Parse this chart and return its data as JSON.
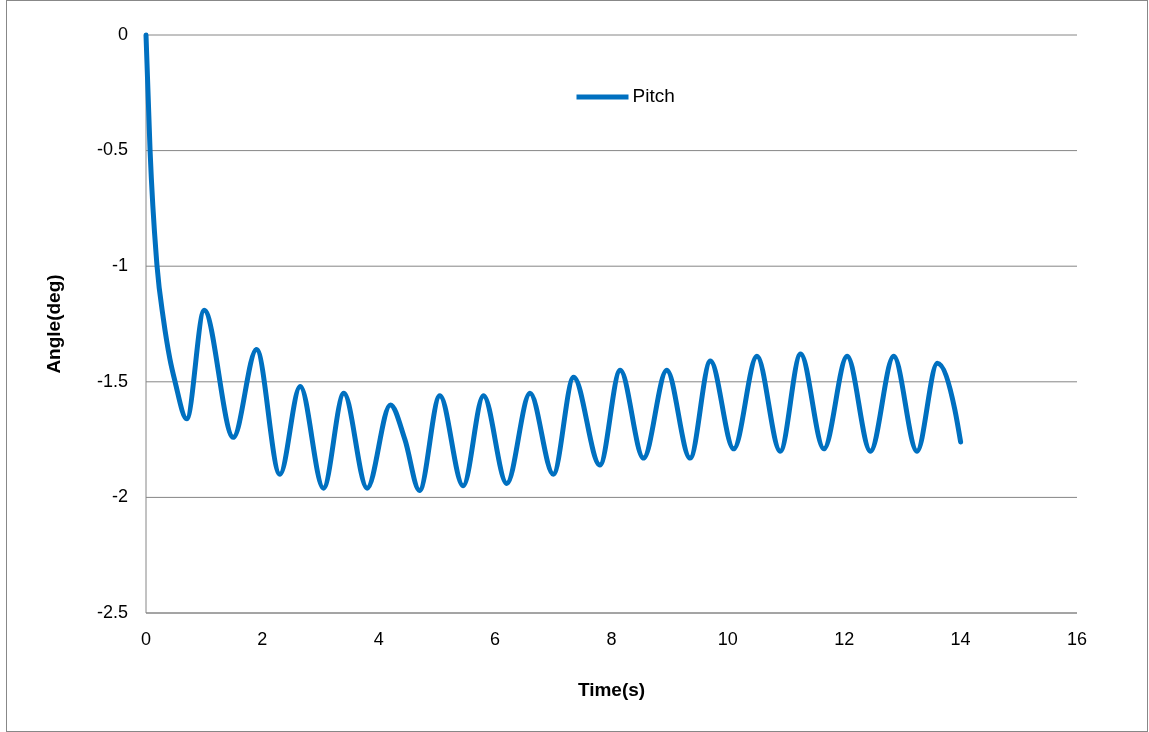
{
  "chart_data": {
    "type": "line",
    "xlabel": "Time(s)",
    "ylabel": "Angle(deg)",
    "xlim": [
      0,
      16
    ],
    "xticks": [
      0,
      2,
      4,
      6,
      8,
      10,
      12,
      14,
      16
    ],
    "ylim": [
      -2.5,
      0
    ],
    "yticks": [
      -2.5,
      -2,
      -1.5,
      -1,
      -0.5,
      0
    ],
    "grid": "y",
    "legend": "top",
    "line_style": "solid",
    "series": [
      {
        "name": "Pitch",
        "color": "#0070c0",
        "x": [
          0,
          0.07,
          0.19,
          0.3,
          0.41,
          0.5,
          0.7,
          1.0,
          1.5,
          1.9,
          2.3,
          2.65,
          3.05,
          3.4,
          3.8,
          4.2,
          4.45,
          4.7,
          5.05,
          5.45,
          5.8,
          6.2,
          6.6,
          7.0,
          7.35,
          7.8,
          8.15,
          8.55,
          8.95,
          9.35,
          9.7,
          10.1,
          10.5,
          10.9,
          11.25,
          11.65,
          12.05,
          12.45,
          12.85,
          13.25,
          13.6,
          13.9,
          14
        ],
        "values": [
          0,
          -0.5,
          -1.0,
          -1.23,
          -1.4,
          -1.5,
          -1.66,
          -1.19,
          -1.74,
          -1.36,
          -1.9,
          -1.52,
          -1.96,
          -1.55,
          -1.96,
          -1.6,
          -1.75,
          -1.97,
          -1.56,
          -1.95,
          -1.56,
          -1.94,
          -1.55,
          -1.9,
          -1.48,
          -1.86,
          -1.45,
          -1.83,
          -1.45,
          -1.83,
          -1.41,
          -1.79,
          -1.39,
          -1.8,
          -1.38,
          -1.79,
          -1.39,
          -1.8,
          -1.39,
          -1.8,
          -1.42,
          -1.62,
          -1.76
        ]
      }
    ]
  }
}
